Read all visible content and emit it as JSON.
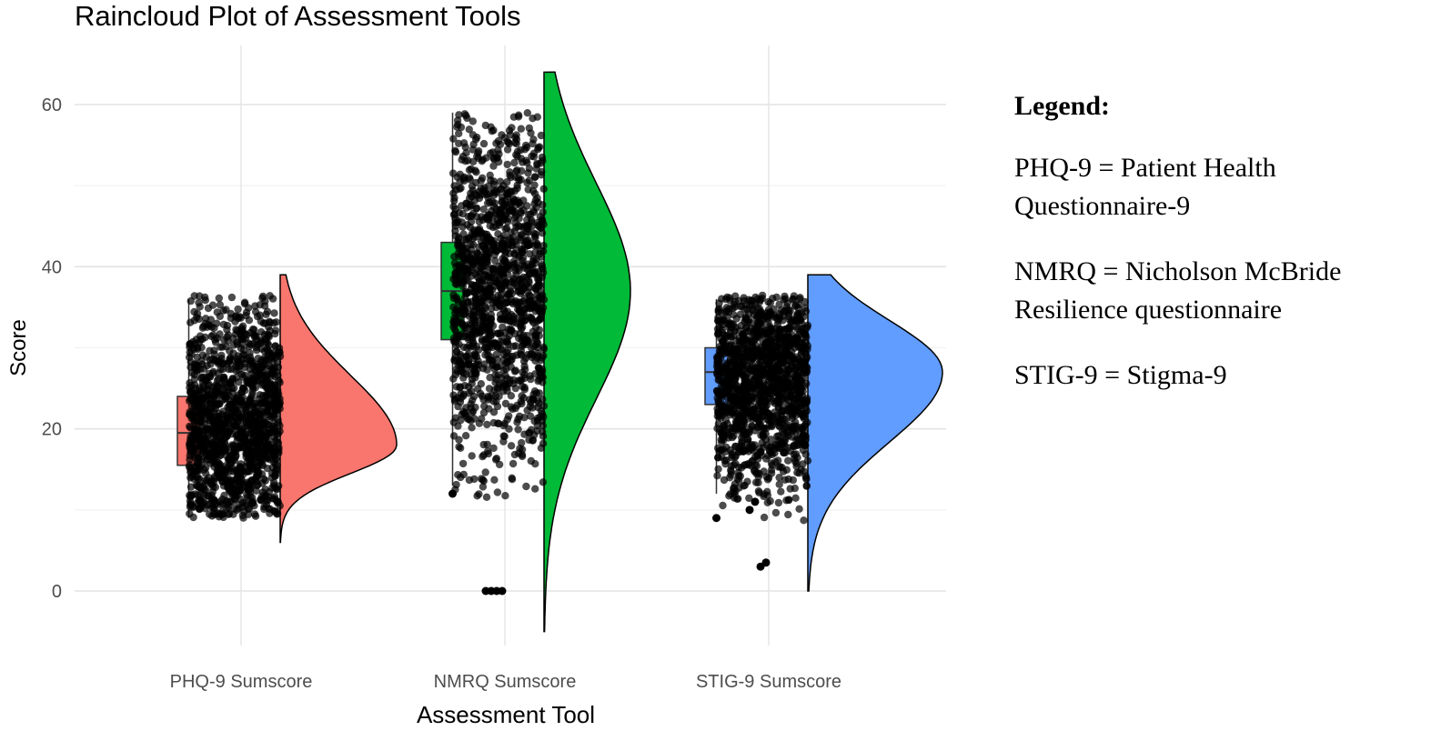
{
  "chart_data": {
    "type": "raincloud",
    "title": "Raincloud Plot of Assessment Tools",
    "xlabel": "Assessment Tool",
    "ylabel": "Score",
    "ylim": [
      -5,
      65
    ],
    "yticks": [
      0,
      20,
      40,
      60
    ],
    "grid": true,
    "categories": [
      "PHQ-9 Sumscore",
      "NMRQ Sumscore",
      "STIG-9 Sumscore"
    ],
    "series": [
      {
        "category": "PHQ-9 Sumscore",
        "color": "#f8766d",
        "boxplot": {
          "whisker_low": 9,
          "q1": 15.5,
          "median": 19.5,
          "q3": 24,
          "whisker_high": 36
        },
        "points_range": [
          9,
          36.5
        ],
        "outliers": [],
        "density_range": [
          6,
          39
        ],
        "density_peak": 18
      },
      {
        "category": "NMRQ Sumscore",
        "color": "#00ba38",
        "boxplot": {
          "whisker_low": 13,
          "q1": 31,
          "median": 37,
          "q3": 43,
          "whisker_high": 59
        },
        "points_range": [
          11.5,
          59
        ],
        "outliers": [
          12,
          0,
          0,
          0,
          0
        ],
        "density_range": [
          -5,
          64
        ],
        "density_peak": 37
      },
      {
        "category": "STIG-9 Sumscore",
        "color": "#619cff",
        "boxplot": {
          "whisker_low": 12,
          "q1": 23,
          "median": 27,
          "q3": 30,
          "whisker_high": 36
        },
        "points_range": [
          8.5,
          36.5
        ],
        "outliers": [
          9,
          10,
          11,
          3,
          3.5
        ],
        "density_range": [
          0,
          39
        ],
        "density_peak": 27
      }
    ]
  },
  "legend": {
    "title": "Legend:",
    "entries": [
      "PHQ-9 = Patient Health Questionnaire-9",
      "NMRQ = Nicholson McBride Resilience questionnaire",
      "STIG-9 = Stigma-9"
    ]
  }
}
